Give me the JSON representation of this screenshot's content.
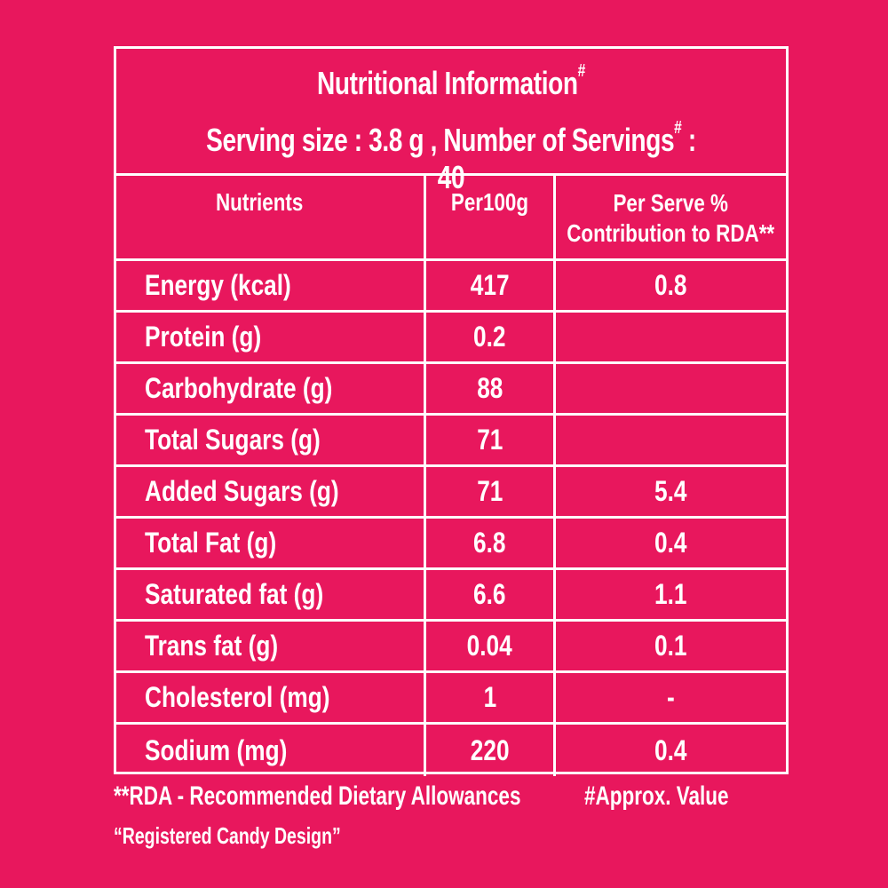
{
  "colors": {
    "background": "#E8175D",
    "foreground": "#FFFFFF"
  },
  "header": {
    "title": "Nutritional Information",
    "title_mark": "#",
    "serving_prefix": "Serving size : 3.8 g , Number of Servings",
    "serving_mark": "#",
    "serving_suffix": " : 40"
  },
  "table": {
    "columns": [
      "Nutrients",
      "Per100g",
      "Per Serve %",
      "Contribution to RDA**"
    ],
    "rows": [
      {
        "nutrient": "Energy (kcal)",
        "per100g": "417",
        "rda": "0.8"
      },
      {
        "nutrient": "Protein (g)",
        "per100g": "0.2",
        "rda": ""
      },
      {
        "nutrient": "Carbohydrate (g)",
        "per100g": "88",
        "rda": ""
      },
      {
        "nutrient": "Total Sugars (g)",
        "per100g": "71",
        "rda": ""
      },
      {
        "nutrient": "Added Sugars (g)",
        "per100g": "71",
        "rda": "5.4"
      },
      {
        "nutrient": "Total Fat (g)",
        "per100g": "6.8",
        "rda": "0.4"
      },
      {
        "nutrient": "Saturated fat (g)",
        "per100g": "6.6",
        "rda": "1.1"
      },
      {
        "nutrient": "Trans fat (g)",
        "per100g": "0.04",
        "rda": "0.1"
      },
      {
        "nutrient": "Cholesterol (mg)",
        "per100g": "1",
        "rda": "-"
      },
      {
        "nutrient": "Sodium (mg)",
        "per100g": "220",
        "rda": "0.4"
      }
    ]
  },
  "footer": {
    "rda_note": "**RDA - Recommended Dietary Allowances",
    "approx_note": "#Approx. Value",
    "design_note": "“Registered Candy Design”"
  }
}
